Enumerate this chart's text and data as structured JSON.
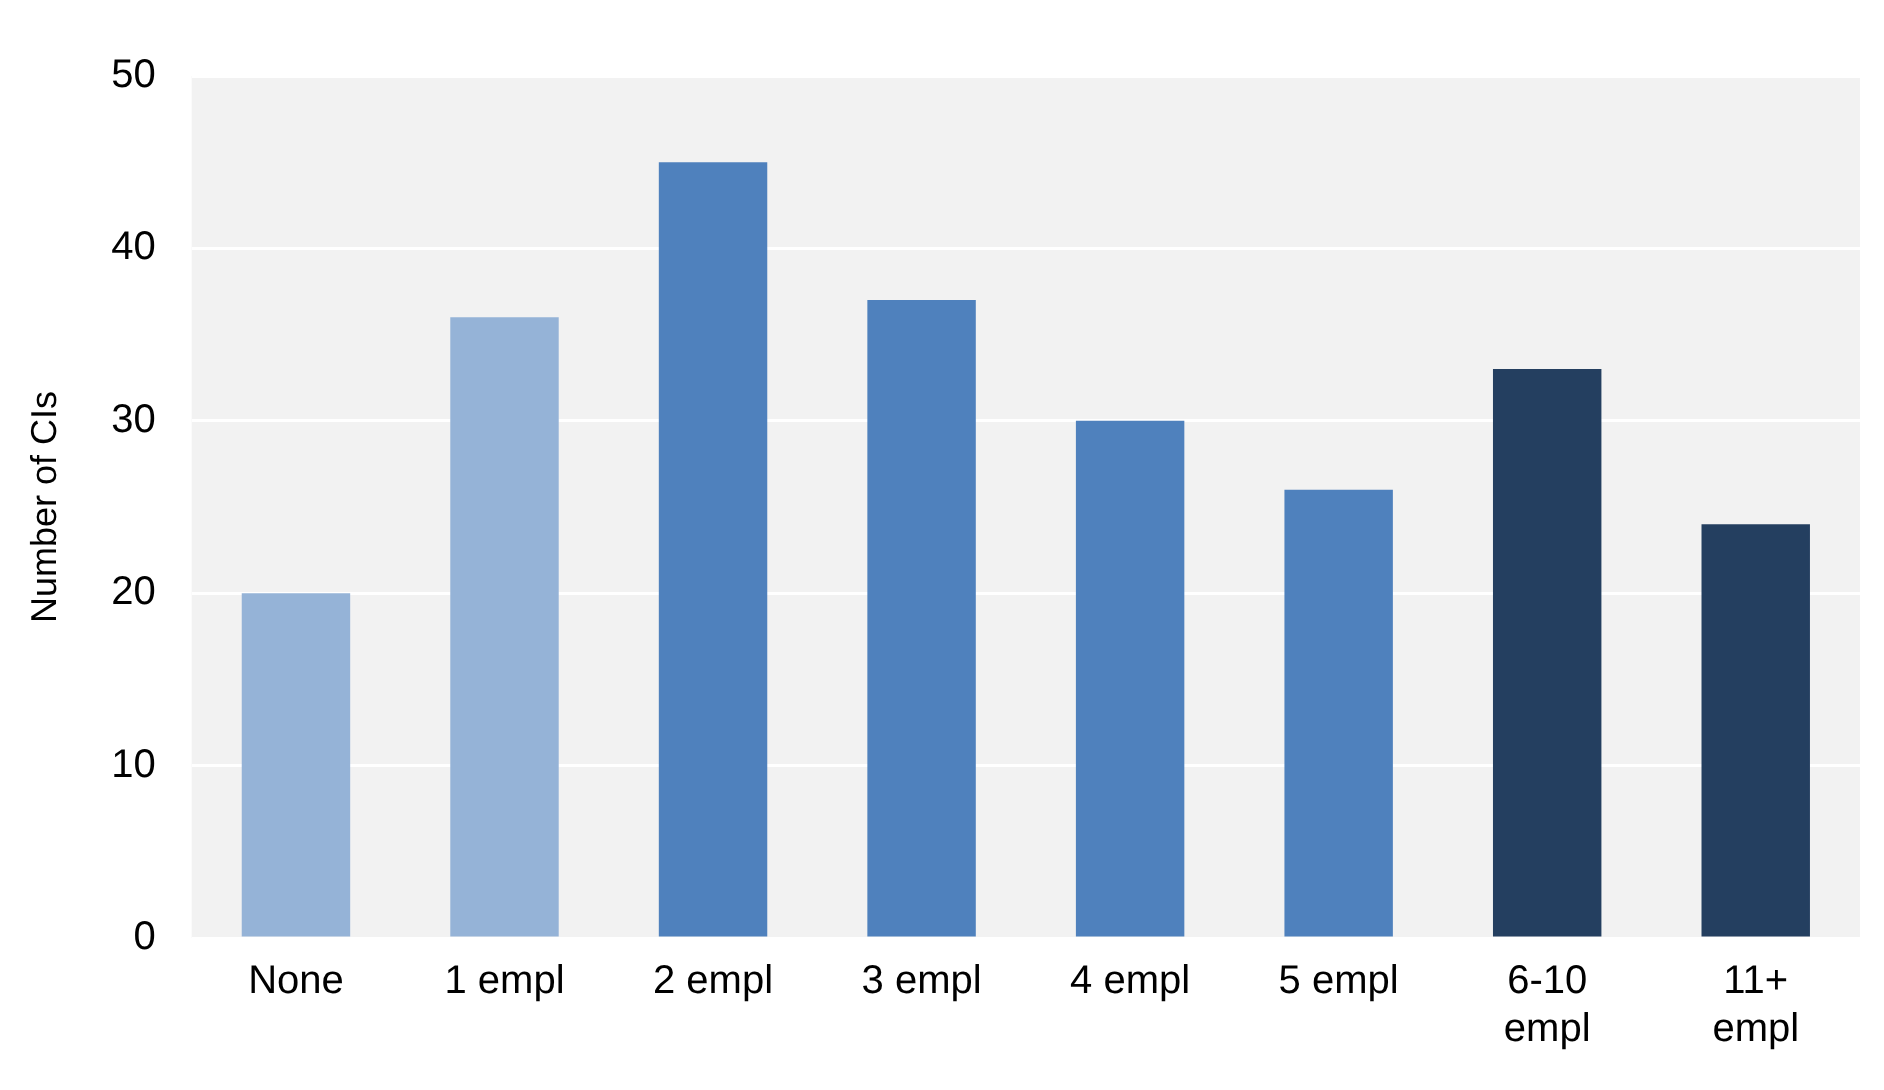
{
  "chart_data": {
    "type": "bar",
    "ylabel": "Number of CIs",
    "categories": [
      "None",
      "1 empl",
      "2 empl",
      "3 empl",
      "4 empl",
      "5 empl",
      "6-10 empl",
      "11+ empl"
    ],
    "values": [
      20,
      36,
      45,
      37,
      30,
      26,
      33,
      24
    ],
    "colors": [
      "#95b3d7",
      "#95b3d7",
      "#4f81bd",
      "#4f81bd",
      "#4f81bd",
      "#4f81bd",
      "#243f60",
      "#243f60"
    ],
    "ylim": [
      0,
      50
    ],
    "yticks": [
      0,
      10,
      20,
      30,
      40,
      50
    ],
    "grid": "y",
    "legend": false
  }
}
